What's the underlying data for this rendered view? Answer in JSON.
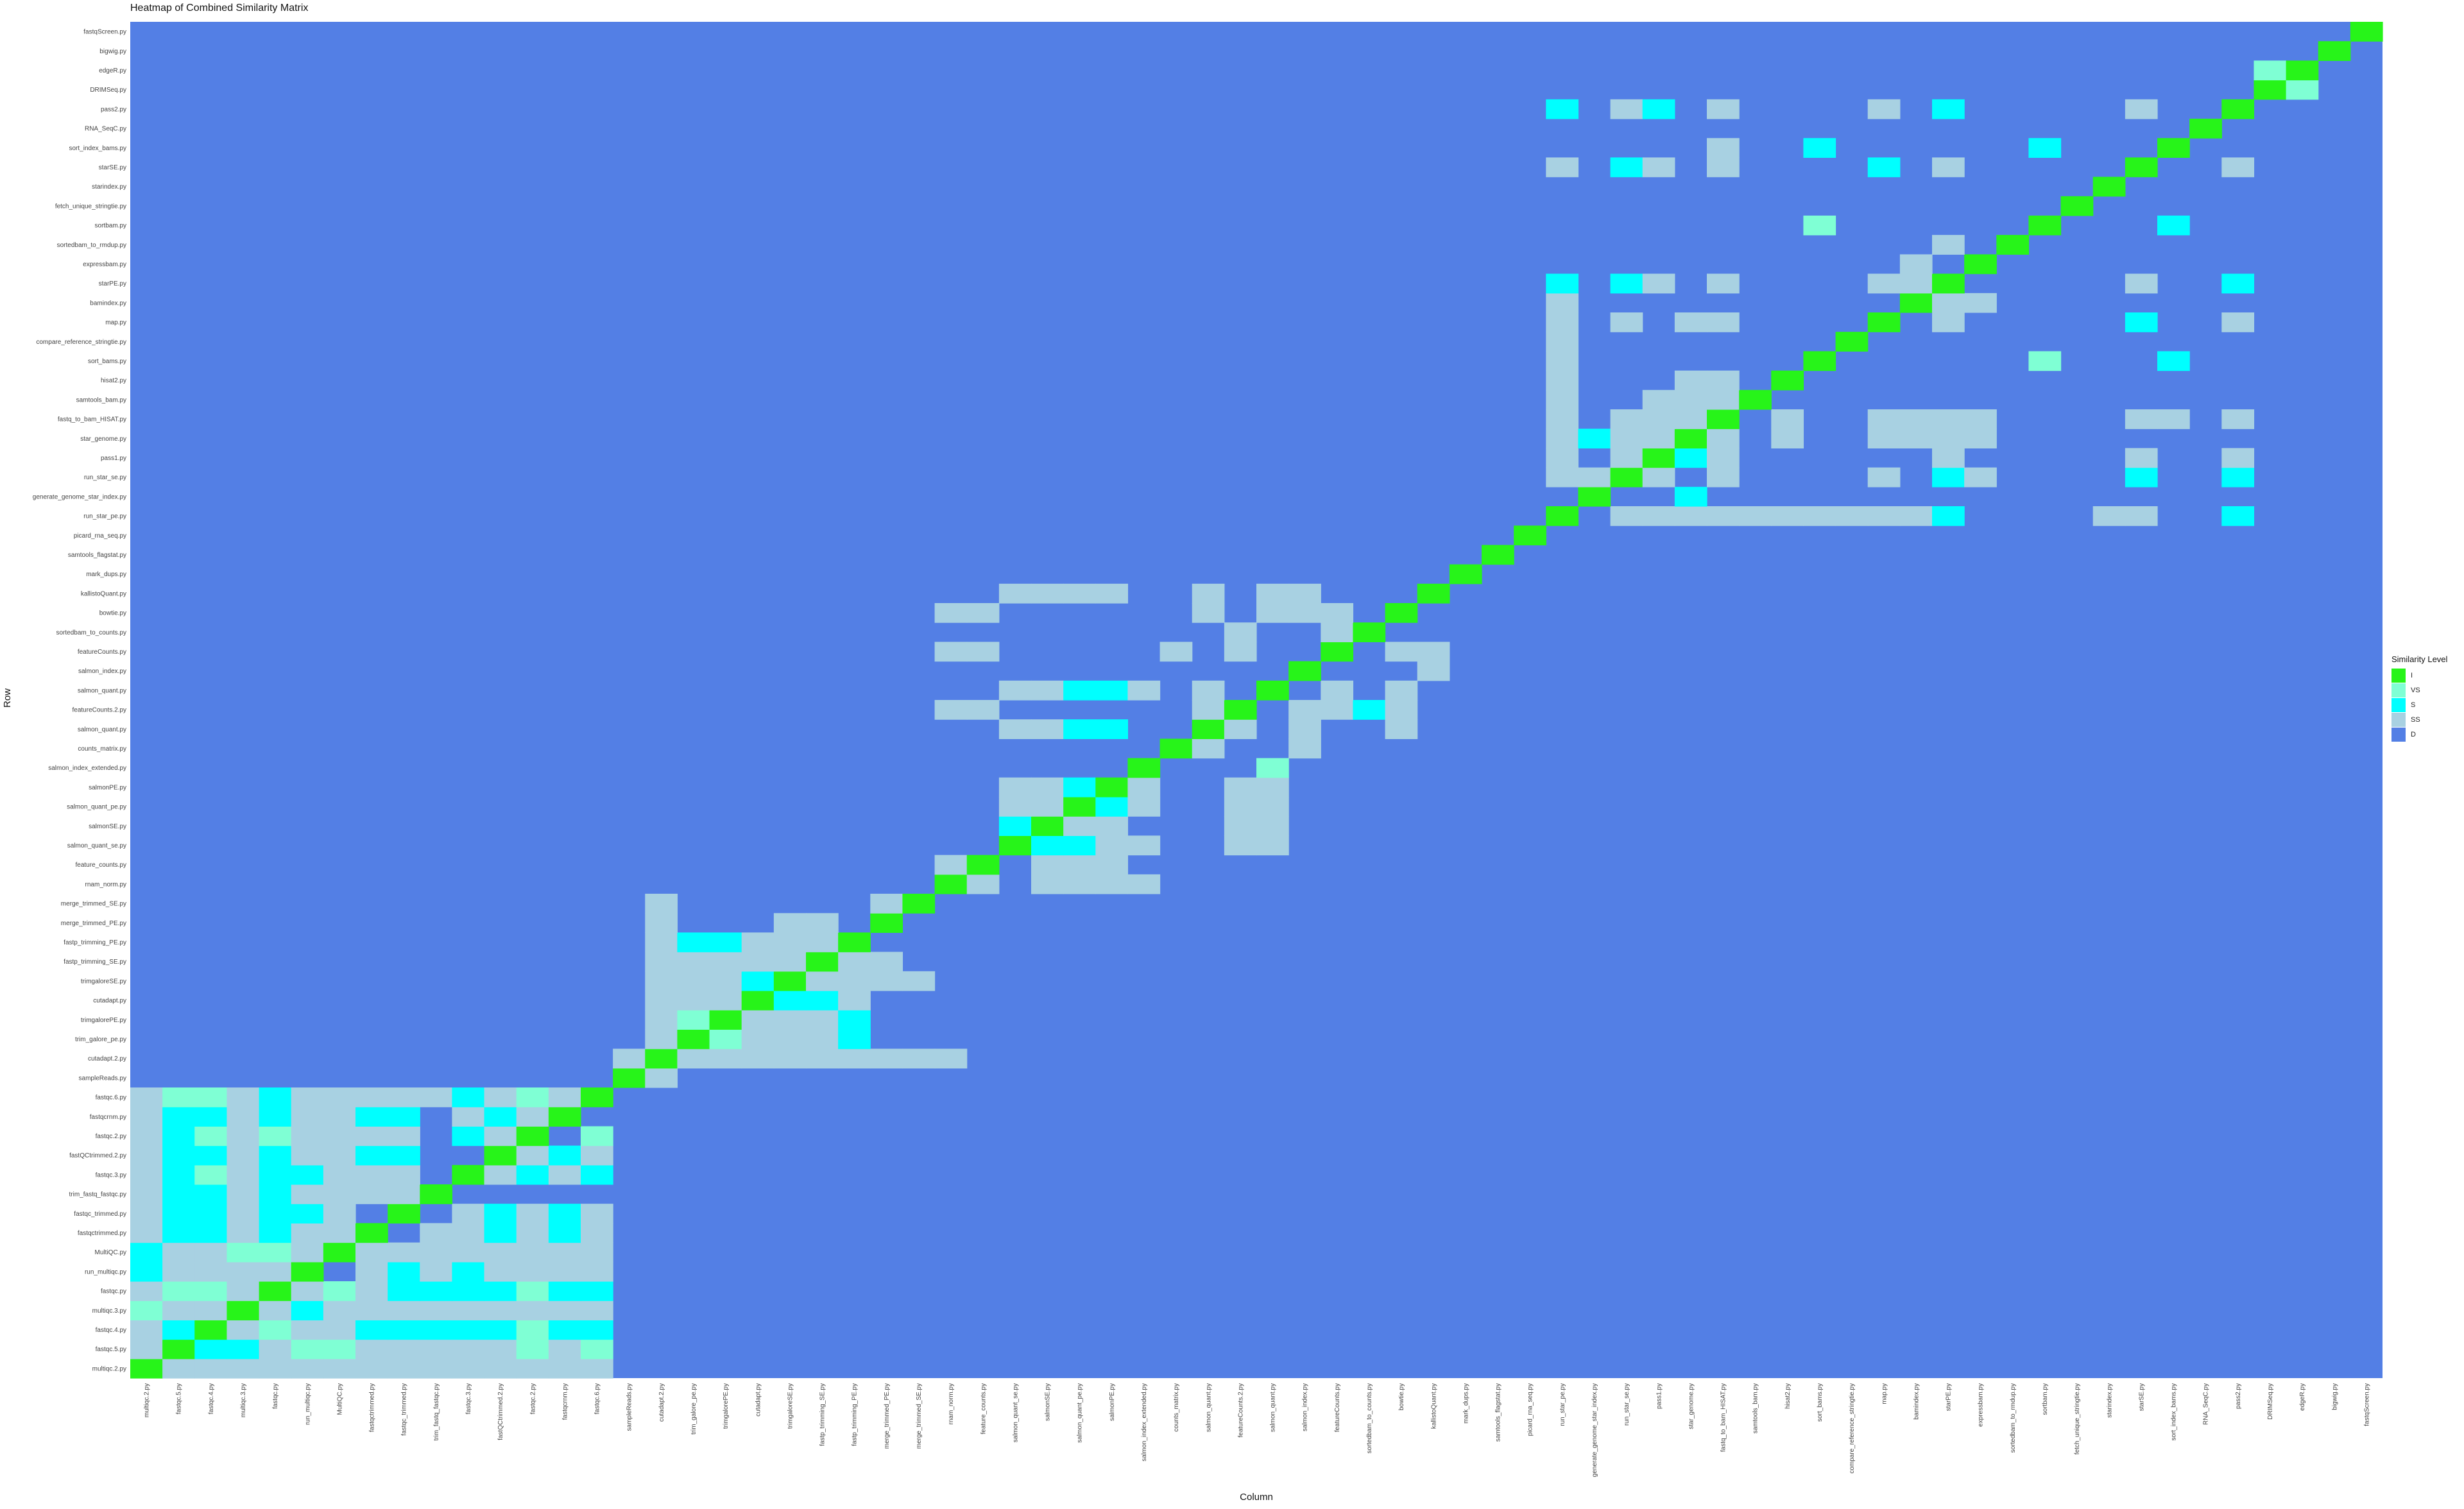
{
  "chart_data": {
    "type": "heatmap",
    "title": "Heatmap of Combined Similarity Matrix",
    "xlabel": "Column",
    "ylabel": "Row",
    "grid": false,
    "legend": {
      "title": "Similarity Level",
      "placement": "right",
      "levels": [
        {
          "code": "I",
          "color": "#27f419"
        },
        {
          "code": "VS",
          "color": "#7fffd4"
        },
        {
          "code": "S",
          "color": "#00ffff"
        },
        {
          "code": "SS",
          "color": "#a8d1e2"
        },
        {
          "code": "D",
          "color": "#537fe5"
        }
      ]
    },
    "default_level": "D",
    "rows": [
      "multiqc.2.py",
      "fastqc.5.py",
      "fastqc.4.py",
      "multiqc.3.py",
      "fastqc.py",
      "run_multiqc.py",
      "MultiQC.py",
      "fastqctrimmed.py",
      "fastqc_trimmed.py",
      "trim_fastq_fastqc.py",
      "fastqc.3.py",
      "fastQCtrimmed.2.py",
      "fastqc.2.py",
      "fastqcrnm.py",
      "fastqc.6.py",
      "sampleReads.py",
      "cutadapt.2.py",
      "trim_galore_pe.py",
      "trimgalorePE.py",
      "cutadapt.py",
      "trimgaloreSE.py",
      "fastp_trimming_SE.py",
      "fastp_trimming_PE.py",
      "merge_trimmed_PE.py",
      "merge_trimmed_SE.py",
      "rnam_norm.py",
      "feature_counts.py",
      "salmon_quant_se.py",
      "salmonSE.py",
      "salmon_quant_pe.py",
      "salmonPE.py",
      "salmon_index_extended.py",
      "counts_matrix.py",
      "salmon_quant.py",
      "featureCounts.2.py",
      "salmon_quant.py",
      "salmon_index.py",
      "featureCounts.py",
      "sortedbam_to_counts.py",
      "bowtie.py",
      "kallistoQuant.py",
      "mark_dups.py",
      "samtools_flagstat.py",
      "picard_rna_seq.py",
      "run_star_pe.py",
      "generate_genome_star_index.py",
      "run_star_se.py",
      "pass1.py",
      "star_genome.py",
      "fastq_to_bam_HISAT.py",
      "samtools_bam.py",
      "hisat2.py",
      "sort_bams.py",
      "compare_reference_stringtie.py",
      "map.py",
      "bamindex.py",
      "starPE.py",
      "expressbam.py",
      "sortedbam_to_rmdup.py",
      "sortbam.py",
      "fetch_unique_stringtie.py",
      "starindex.py",
      "starSE.py",
      "sort_index_bams.py",
      "RNA_SeqC.py",
      "pass2.py",
      "DRIMSeq.py",
      "edgeR.py",
      "bigwig.py",
      "fastqScreen.py"
    ],
    "columns": [
      "multiqc.2.py",
      "fastqc.5.py",
      "fastqc.4.py",
      "multiqc.3.py",
      "fastqc.py",
      "run_multiqc.py",
      "MultiQC.py",
      "fastqctrimmed.py",
      "fastqc_trimmed.py",
      "trim_fastq_fastqc.py",
      "fastqc.3.py",
      "fastQCtrimmed.2.py",
      "fastqc.2.py",
      "fastqcrnm.py",
      "fastqc.6.py",
      "sampleReads.py",
      "cutadapt.2.py",
      "trim_galore_pe.py",
      "trimgalorePE.py",
      "cutadapt.py",
      "trimgaloreSE.py",
      "fastp_trimming_SE.py",
      "fastp_trimming_PE.py",
      "merge_trimmed_PE.py",
      "merge_trimmed_SE.py",
      "rnam_norm.py",
      "feature_counts.py",
      "salmon_quant_se.py",
      "salmonSE.py",
      "salmon_quant_pe.py",
      "salmonPE.py",
      "salmon_index_extended.py",
      "counts_matrix.py",
      "salmon_quant.py",
      "featureCounts.2.py",
      "salmon_quant.py",
      "salmon_index.py",
      "featureCounts.py",
      "sortedbam_to_counts.py",
      "bowtie.py",
      "kallistoQuant.py",
      "mark_dups.py",
      "samtools_flagstat.py",
      "picard_rna_seq.py",
      "run_star_pe.py",
      "generate_genome_star_index.py",
      "run_star_se.py",
      "pass1.py",
      "star_genome.py",
      "fastq_to_bam_HISAT.py",
      "samtools_bam.py",
      "hisat2.py",
      "sort_bams.py",
      "compare_reference_stringtie.py",
      "map.py",
      "bamindex.py",
      "starPE.py",
      "expressbam.py",
      "sortedbam_to_rmdup.py",
      "sortbam.py",
      "fetch_unique_stringtie.py",
      "starindex.py",
      "starSE.py",
      "sort_index_bams.py",
      "RNA_SeqC.py",
      "pass2.py",
      "DRIMSeq.py",
      "edgeR.py",
      "bigwig.py",
      "fastqScreen.py"
    ],
    "level_rows": [
      {
        "row": 0,
        "SS": [
          1,
          2,
          3,
          4,
          5,
          6,
          7,
          8,
          9,
          10,
          11,
          12,
          13,
          14
        ]
      },
      {
        "row": 1,
        "S": [
          2,
          3
        ],
        "VS": [
          5,
          6,
          12,
          14
        ],
        "SS": [
          0,
          4,
          7,
          8,
          9,
          10,
          11,
          13
        ]
      },
      {
        "row": 2,
        "VS": [
          4,
          12
        ],
        "S": [
          1,
          7,
          8,
          9,
          10,
          11,
          13,
          14
        ],
        "SS": [
          0,
          3,
          5,
          6
        ]
      },
      {
        "row": 3,
        "VS": [
          0
        ],
        "S": [
          5
        ],
        "SS": [
          1,
          2,
          4,
          6,
          7,
          8,
          9,
          10,
          11,
          12,
          13,
          14
        ]
      },
      {
        "row": 4,
        "VS": [
          1,
          2,
          6,
          12
        ],
        "S": [
          8,
          9,
          10,
          11,
          13,
          14
        ],
        "SS": [
          0,
          3,
          5,
          7
        ]
      },
      {
        "row": 5,
        "S": [
          0,
          8,
          10
        ],
        "SS": [
          1,
          2,
          3,
          4,
          7,
          9,
          11,
          12,
          13,
          14
        ]
      },
      {
        "row": 6,
        "S": [
          0
        ],
        "VS": [
          3,
          4
        ],
        "SS": [
          1,
          2,
          5,
          7,
          8,
          9,
          10,
          11,
          12,
          13,
          14
        ]
      },
      {
        "row": 7,
        "S": [
          1,
          2,
          4,
          11,
          13
        ],
        "SS": [
          0,
          3,
          5,
          6,
          9,
          10,
          12,
          14
        ]
      },
      {
        "row": 8,
        "S": [
          1,
          2,
          4,
          5,
          11,
          13
        ],
        "SS": [
          0,
          3,
          6,
          10,
          12,
          14
        ]
      },
      {
        "row": 9,
        "S": [
          1,
          2,
          4
        ],
        "SS": [
          0,
          3,
          5,
          6,
          7,
          8
        ]
      },
      {
        "row": 10,
        "VS": [
          2
        ],
        "S": [
          1,
          4,
          5,
          12,
          14
        ],
        "SS": [
          0,
          3,
          6,
          7,
          8,
          11,
          13
        ]
      },
      {
        "row": 11,
        "S": [
          1,
          2,
          4,
          7,
          8,
          13
        ],
        "SS": [
          0,
          3,
          5,
          6,
          12,
          14
        ]
      },
      {
        "row": 12,
        "VS": [
          2,
          4,
          14
        ],
        "S": [
          1,
          10
        ],
        "SS": [
          0,
          3,
          5,
          6,
          7,
          8,
          11
        ]
      },
      {
        "row": 13,
        "S": [
          1,
          2,
          4,
          7,
          8,
          11
        ],
        "SS": [
          0,
          3,
          5,
          6,
          10,
          12
        ]
      },
      {
        "row": 14,
        "VS": [
          1,
          2,
          12
        ],
        "S": [
          4,
          10
        ],
        "SS": [
          0,
          3,
          5,
          6,
          7,
          8,
          9,
          11,
          13
        ]
      },
      {
        "row": 15,
        "SS": [
          16
        ]
      },
      {
        "row": 16,
        "SS": [
          15,
          17,
          18,
          19,
          20,
          21,
          22,
          23,
          24,
          25
        ]
      },
      {
        "row": 17,
        "S": [
          22
        ],
        "VS": [
          18
        ],
        "SS": [
          16,
          19,
          20,
          21
        ]
      },
      {
        "row": 18,
        "S": [
          22
        ],
        "VS": [
          17
        ],
        "SS": [
          16,
          19,
          20,
          21
        ]
      },
      {
        "row": 19,
        "S": [
          20,
          21
        ],
        "SS": [
          16,
          17,
          18,
          22
        ]
      },
      {
        "row": 20,
        "S": [
          19
        ],
        "SS": [
          16,
          17,
          18,
          21,
          22,
          23,
          24
        ]
      },
      {
        "row": 21,
        "SS": [
          16,
          17,
          18,
          19,
          20,
          22,
          23
        ]
      },
      {
        "row": 22,
        "S": [
          17,
          18
        ],
        "SS": [
          16,
          19,
          20,
          21
        ]
      },
      {
        "row": 23,
        "SS": [
          16,
          20,
          21
        ]
      },
      {
        "row": 24,
        "SS": [
          16,
          23
        ]
      },
      {
        "row": 25,
        "SS": [
          26,
          28,
          29,
          30,
          31
        ]
      },
      {
        "row": 26,
        "SS": [
          25,
          28,
          29,
          30
        ]
      },
      {
        "row": 27,
        "S": [
          28,
          29
        ],
        "SS": [
          30,
          31,
          34,
          35
        ]
      },
      {
        "row": 28,
        "S": [
          27
        ],
        "SS": [
          29,
          30,
          34,
          35
        ]
      },
      {
        "row": 29,
        "S": [
          30
        ],
        "SS": [
          27,
          28,
          31,
          34,
          35
        ]
      },
      {
        "row": 30,
        "S": [
          29
        ],
        "SS": [
          27,
          28,
          31,
          34,
          35
        ]
      },
      {
        "row": 31,
        "VS": [
          35
        ]
      },
      {
        "row": 32,
        "SS": [
          33,
          36
        ]
      },
      {
        "row": 33,
        "S": [
          29,
          30
        ],
        "SS": [
          27,
          28,
          34,
          36,
          39
        ]
      },
      {
        "row": 34,
        "S": [
          38
        ],
        "SS": [
          25,
          26,
          33,
          36,
          37,
          39
        ]
      },
      {
        "row": 35,
        "S": [
          29,
          30
        ],
        "SS": [
          27,
          28,
          31,
          33,
          37,
          39
        ]
      },
      {
        "row": 36,
        "SS": [
          40
        ]
      },
      {
        "row": 37,
        "SS": [
          25,
          26,
          32,
          34,
          39,
          40
        ]
      },
      {
        "row": 38,
        "SS": [
          34,
          37
        ]
      },
      {
        "row": 39,
        "SS": [
          25,
          26,
          33,
          35,
          36,
          37
        ]
      },
      {
        "row": 40,
        "SS": [
          27,
          28,
          29,
          30,
          33,
          35,
          36
        ]
      }
    ],
    "top_block_rows": [
      {
        "row": 44,
        "S": [
          56,
          65
        ],
        "SS": [
          46,
          47,
          48,
          49,
          50,
          51,
          52,
          53,
          54,
          55,
          61,
          62
        ]
      },
      {
        "row": 45,
        "S": [
          48
        ]
      },
      {
        "row": 46,
        "S": [
          56,
          62,
          65
        ],
        "SS": [
          44,
          45,
          47,
          49,
          54,
          57
        ]
      },
      {
        "row": 47,
        "S": [
          48
        ],
        "SS": [
          44,
          46,
          49,
          56,
          62,
          65
        ]
      },
      {
        "row": 48,
        "S": [
          45
        ],
        "SS": [
          44,
          46,
          47,
          49,
          51,
          54,
          55,
          56,
          57
        ]
      },
      {
        "row": 49,
        "SS": [
          44,
          46,
          47,
          48,
          51,
          54,
          55,
          56,
          57,
          62,
          63,
          65
        ]
      },
      {
        "row": 50,
        "SS": [
          44,
          47,
          48,
          49
        ]
      },
      {
        "row": 51,
        "SS": [
          44,
          48,
          49
        ]
      },
      {
        "row": 52,
        "VS": [
          59
        ],
        "S": [
          63
        ],
        "SS": [
          44
        ]
      },
      {
        "row": 53,
        "SS": [
          44
        ]
      },
      {
        "row": 54,
        "S": [
          62
        ],
        "SS": [
          44,
          46,
          48,
          49,
          56,
          65
        ]
      },
      {
        "row": 55,
        "SS": [
          44,
          56,
          57
        ]
      },
      {
        "row": 56,
        "S": [
          44,
          46,
          65
        ],
        "SS": [
          47,
          49,
          54,
          55,
          62
        ]
      },
      {
        "row": 57,
        "SS": [
          55
        ]
      },
      {
        "row": 58,
        "SS": [
          56
        ]
      },
      {
        "row": 59,
        "VS": [
          52
        ],
        "S": [
          63
        ]
      },
      {
        "row": 62,
        "S": [
          46,
          54
        ],
        "SS": [
          44,
          47,
          49,
          56,
          65
        ]
      },
      {
        "row": 63,
        "S": [
          52,
          59
        ],
        "SS": [
          49
        ]
      },
      {
        "row": 65,
        "S": [
          44,
          47,
          56
        ],
        "SS": [
          46,
          49,
          54,
          62
        ]
      },
      {
        "row": 66,
        "VS": [
          67
        ]
      },
      {
        "row": 67,
        "VS": [
          66
        ]
      }
    ]
  }
}
